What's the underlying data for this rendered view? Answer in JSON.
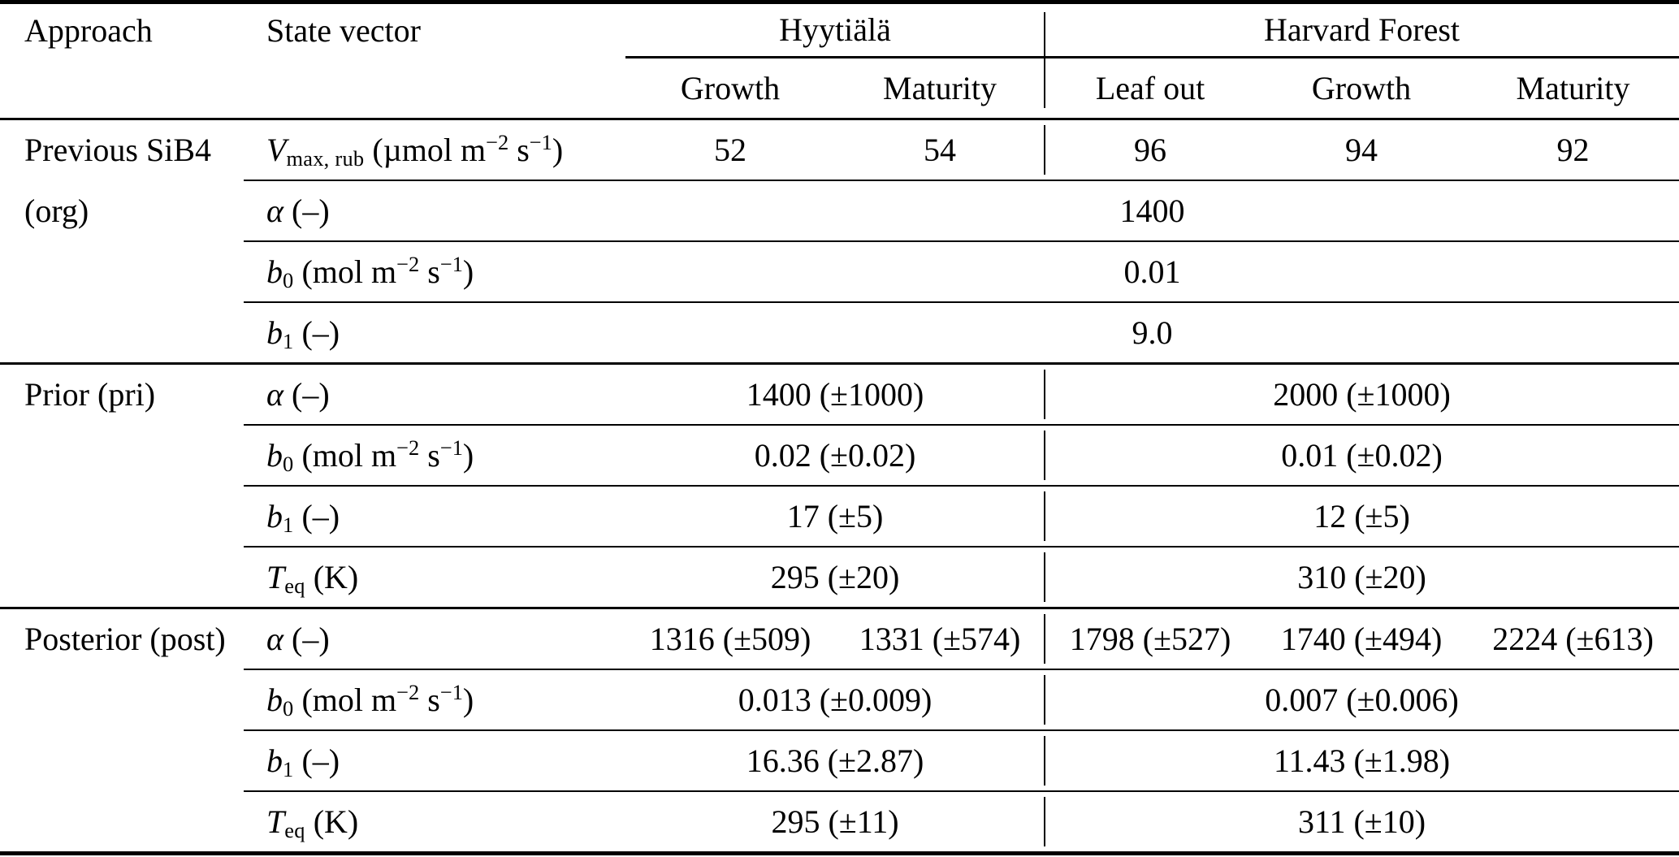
{
  "table": {
    "headers": {
      "approach": "Approach",
      "state_vector": "State vector",
      "site_hyytiala": "Hyytiälä",
      "site_harvard": "Harvard Forest",
      "hyytiala_stages": [
        "Growth",
        "Maturity"
      ],
      "harvard_stages": [
        "Leaf out",
        "Growth",
        "Maturity"
      ]
    },
    "sections": [
      {
        "approach_line1": "Previous SiB4",
        "approach_line2": "(org)",
        "rows": [
          {
            "param": "*V*_{max, rub} (µmol m^{−2} s^{−1})",
            "values": [
              "52",
              "54",
              "96",
              "94",
              "92"
            ]
          },
          {
            "param": "*α* (–)",
            "value": "1400"
          },
          {
            "param": "*b*_{0} (mol m^{−2} s^{−1})",
            "value": "0.01"
          },
          {
            "param": "*b*_{1} (–)",
            "value": "9.0"
          }
        ]
      },
      {
        "approach_line1": "Prior (pri)",
        "approach_line2": "",
        "rows": [
          {
            "param": "*α* (–)",
            "hyytiala": "1400 (±1000)",
            "harvard": "2000 (±1000)"
          },
          {
            "param": "*b*_{0} (mol m^{−2} s^{−1})",
            "hyytiala": "0.02 (±0.02)",
            "harvard": "0.01 (±0.02)"
          },
          {
            "param": "*b*_{1} (–)",
            "hyytiala": "17 (±5)",
            "harvard": "12 (±5)"
          },
          {
            "param": "*T*_{eq} (K)",
            "hyytiala": "295 (±20)",
            "harvard": "310 (±20)"
          }
        ]
      },
      {
        "approach_line1": "Posterior (post)",
        "approach_line2": "",
        "rows": [
          {
            "param": "*α* (–)",
            "values": [
              "1316 (±509)",
              "1331 (±574)",
              "1798 (±527)",
              "1740 (±494)",
              "2224 (±613)"
            ]
          },
          {
            "param": "*b*_{0} (mol m^{−2} s^{−1})",
            "hyytiala": "0.013 (±0.009)",
            "harvard": "0.007 (±0.006)"
          },
          {
            "param": "*b*_{1} (–)",
            "hyytiala": "16.36 (±2.87)",
            "harvard": "11.43 (±1.98)"
          },
          {
            "param": "*T*_{eq} (K)",
            "hyytiala": "295 (±11)",
            "harvard": "311 (±10)"
          }
        ]
      }
    ]
  }
}
